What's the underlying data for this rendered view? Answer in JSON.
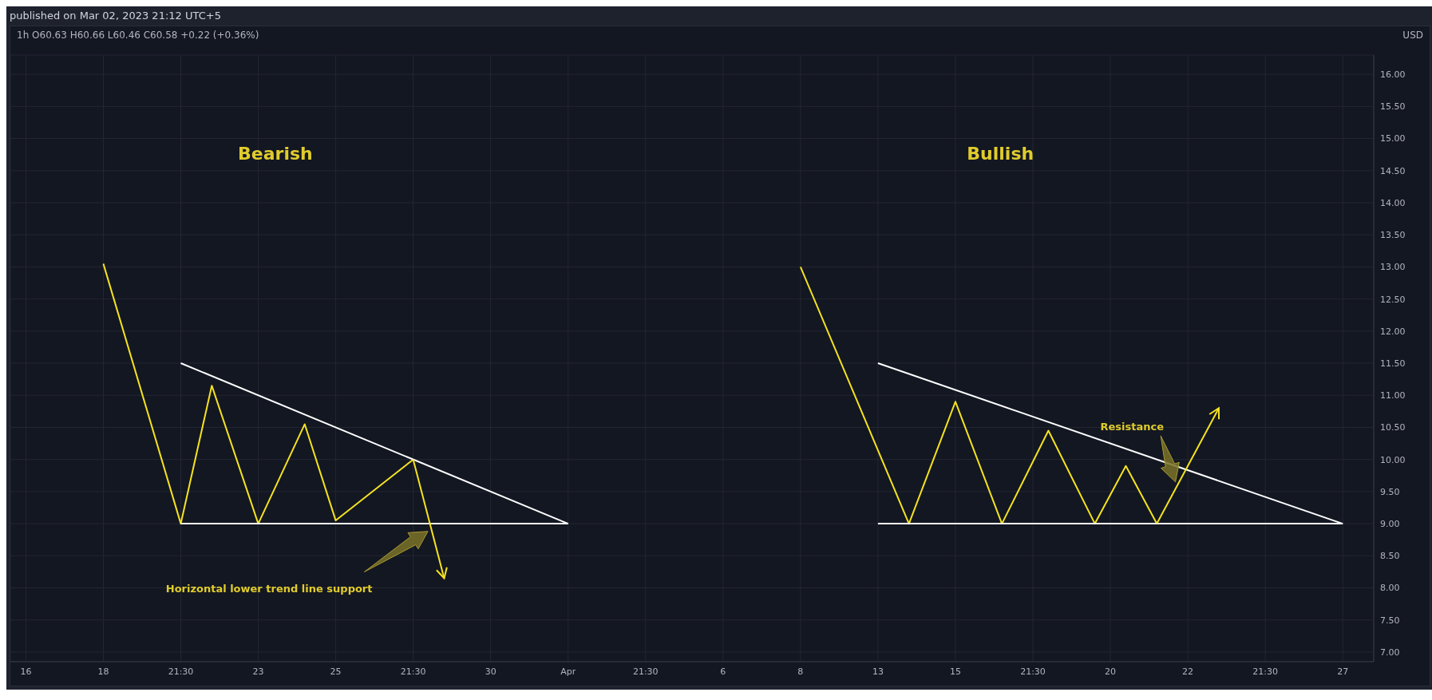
{
  "chart_data": {
    "type": "line",
    "title": "1h  O60.63  H60.66  L60.46  C60.58  +0.22 (+0.36%)",
    "ylabel": "USD",
    "annotations": [
      "published on Mar 02, 2023 21:12 UTC+5",
      "Bearish",
      "Bullish",
      "Horizontal lower trend line support",
      "Resistance"
    ],
    "categories": [
      null,
      "16",
      null,
      null,
      null,
      null,
      "18",
      null,
      null,
      null,
      null,
      "21:30",
      null,
      null,
      null,
      null,
      "23",
      null,
      null,
      null,
      null,
      "25",
      null,
      null,
      null,
      null,
      "21:30",
      null,
      null,
      null,
      null,
      "30",
      null,
      null,
      null,
      null,
      "Apr",
      null,
      null,
      null,
      null,
      "21:30",
      null,
      null,
      null,
      null,
      "6",
      null,
      null,
      null,
      null,
      "8",
      null,
      null,
      null,
      null,
      "13",
      null,
      null,
      null,
      null,
      "15",
      null,
      null,
      null,
      null,
      "21:30",
      null,
      null,
      null,
      null,
      "20",
      null,
      null,
      null,
      null,
      "22",
      null,
      null,
      null,
      null,
      "21:30",
      null,
      null,
      null,
      null,
      "27",
      null,
      null
    ],
    "series": [
      {
        "color": "#f5e31f",
        "values": [
          null,
          null,
          null,
          null,
          null,
          null,
          13.05,
          null,
          null,
          null,
          null,
          9.0,
          null,
          11.15,
          null,
          null,
          9.0,
          null,
          null,
          10.55,
          null,
          9.05,
          null,
          null,
          null,
          null,
          10.0,
          null,
          null,
          null,
          null,
          null,
          null,
          null,
          null,
          null,
          null,
          null,
          null,
          null,
          null,
          null,
          null,
          null,
          null,
          null,
          null,
          null,
          null,
          null,
          null,
          null,
          null,
          null,
          null,
          null,
          null,
          null,
          null,
          null,
          null,
          null,
          null,
          null,
          null,
          null,
          null,
          null,
          null,
          null,
          null,
          null,
          null,
          null,
          null,
          null,
          null,
          null,
          null,
          null,
          null,
          null,
          null,
          null,
          null,
          null,
          null,
          null,
          null
        ]
      },
      {
        "color": "#ffffff",
        "values": [
          null,
          null,
          null,
          null,
          null,
          null,
          null,
          null,
          null,
          null,
          null,
          11.5,
          null,
          null,
          null,
          null,
          null,
          null,
          null,
          null,
          null,
          null,
          null,
          null,
          null,
          null,
          null,
          null,
          null,
          null,
          null,
          null,
          null,
          null,
          null,
          null,
          9.0,
          null,
          null,
          null,
          null,
          null,
          null,
          null,
          null,
          null,
          null,
          null,
          null,
          null,
          null,
          null,
          null,
          null,
          null,
          null,
          null,
          null,
          null,
          null,
          null,
          null,
          null,
          null,
          null,
          null,
          null,
          null,
          null,
          null,
          null,
          null,
          null,
          null,
          null,
          null,
          null,
          null,
          null,
          null,
          null,
          null,
          null,
          null,
          null,
          null,
          null,
          null,
          null
        ]
      },
      {
        "color": "#ffffff",
        "values": [
          null,
          null,
          null,
          null,
          null,
          null,
          null,
          null,
          null,
          null,
          null,
          9.0,
          null,
          null,
          null,
          null,
          null,
          null,
          null,
          null,
          null,
          null,
          null,
          null,
          null,
          null,
          null,
          null,
          null,
          null,
          null,
          null,
          null,
          null,
          null,
          null,
          9.0,
          null,
          null,
          null,
          null,
          null,
          null,
          null,
          null,
          null,
          null,
          null,
          null,
          null,
          null,
          null,
          null,
          null,
          null,
          null,
          null,
          null,
          null,
          null,
          null,
          null,
          null,
          null,
          null,
          null,
          null,
          null,
          null,
          null,
          null,
          null,
          null,
          null,
          null,
          null,
          null,
          null,
          null,
          null,
          null,
          null,
          null,
          null,
          null,
          null,
          null,
          null,
          null
        ]
      },
      {
        "color": "#f5e31f",
        "values": [
          null,
          null,
          null,
          null,
          null,
          null,
          null,
          null,
          null,
          null,
          null,
          null,
          null,
          null,
          null,
          null,
          null,
          null,
          null,
          null,
          null,
          null,
          null,
          null,
          null,
          null,
          null,
          null,
          null,
          null,
          null,
          null,
          null,
          null,
          null,
          null,
          null,
          null,
          null,
          null,
          null,
          null,
          null,
          null,
          null,
          null,
          null,
          null,
          null,
          null,
          null,
          13.0,
          null,
          null,
          null,
          null,
          null,
          null,
          9.0,
          null,
          null,
          10.9,
          null,
          null,
          9.0,
          null,
          null,
          10.45,
          null,
          null,
          9.0,
          null,
          9.9,
          null,
          9.0,
          null,
          null,
          null,
          null,
          null,
          null,
          null,
          null,
          null,
          null,
          null,
          null,
          null,
          null
        ]
      },
      {
        "color": "#ffffff",
        "values": [
          null,
          null,
          null,
          null,
          null,
          null,
          null,
          null,
          null,
          null,
          null,
          null,
          null,
          null,
          null,
          null,
          null,
          null,
          null,
          null,
          null,
          null,
          null,
          null,
          null,
          null,
          null,
          null,
          null,
          null,
          null,
          null,
          null,
          null,
          null,
          null,
          null,
          null,
          null,
          null,
          null,
          null,
          null,
          null,
          null,
          null,
          null,
          null,
          null,
          null,
          null,
          null,
          null,
          null,
          null,
          null,
          11.5,
          null,
          null,
          null,
          null,
          null,
          null,
          null,
          null,
          null,
          null,
          null,
          null,
          null,
          null,
          null,
          null,
          null,
          null,
          null,
          null,
          null,
          null,
          null,
          null,
          null,
          null,
          null,
          null,
          null,
          9.0,
          null,
          null
        ]
      },
      {
        "color": "#ffffff",
        "values": [
          null,
          null,
          null,
          null,
          null,
          null,
          null,
          null,
          null,
          null,
          null,
          null,
          null,
          null,
          null,
          null,
          null,
          null,
          null,
          null,
          null,
          null,
          null,
          null,
          null,
          null,
          null,
          null,
          null,
          null,
          null,
          null,
          null,
          null,
          null,
          null,
          null,
          null,
          null,
          null,
          null,
          null,
          null,
          null,
          null,
          null,
          null,
          null,
          null,
          null,
          null,
          null,
          null,
          null,
          null,
          null,
          9.0,
          null,
          null,
          null,
          null,
          null,
          null,
          null,
          null,
          null,
          null,
          null,
          null,
          null,
          null,
          null,
          null,
          null,
          null,
          null,
          null,
          null,
          null,
          null,
          null,
          null,
          null,
          null,
          null,
          null,
          9.0,
          null,
          null
        ]
      }
    ],
    "ylim": [
      6.85,
      16.3
    ],
    "yticks": [
      {
        "value": 7,
        "label": "7.00"
      },
      {
        "value": 7.5,
        "label": "7.50"
      },
      {
        "value": 8,
        "label": "8.00"
      },
      {
        "value": 8.5,
        "label": "8.50"
      },
      {
        "value": 9,
        "label": "9.00"
      },
      {
        "value": 9.5,
        "label": "9.50"
      },
      {
        "value": 10,
        "label": "10.00"
      },
      {
        "value": 10.5,
        "label": "10.50"
      },
      {
        "value": 11,
        "label": "11.00"
      },
      {
        "value": 11.5,
        "label": "11.50"
      },
      {
        "value": 12,
        "label": "12.00"
      },
      {
        "value": 12.5,
        "label": "12.50"
      },
      {
        "value": 13,
        "label": "13.00"
      },
      {
        "value": 13.5,
        "label": "13.50"
      },
      {
        "value": 14,
        "label": "14.00"
      },
      {
        "value": 14.5,
        "label": "14.50"
      },
      {
        "value": 15,
        "label": "15.00"
      },
      {
        "value": 15.5,
        "label": "15.50"
      },
      {
        "value": 16,
        "label": "16.00"
      }
    ],
    "grid": true,
    "marker": "none",
    "line_style": "solid"
  }
}
